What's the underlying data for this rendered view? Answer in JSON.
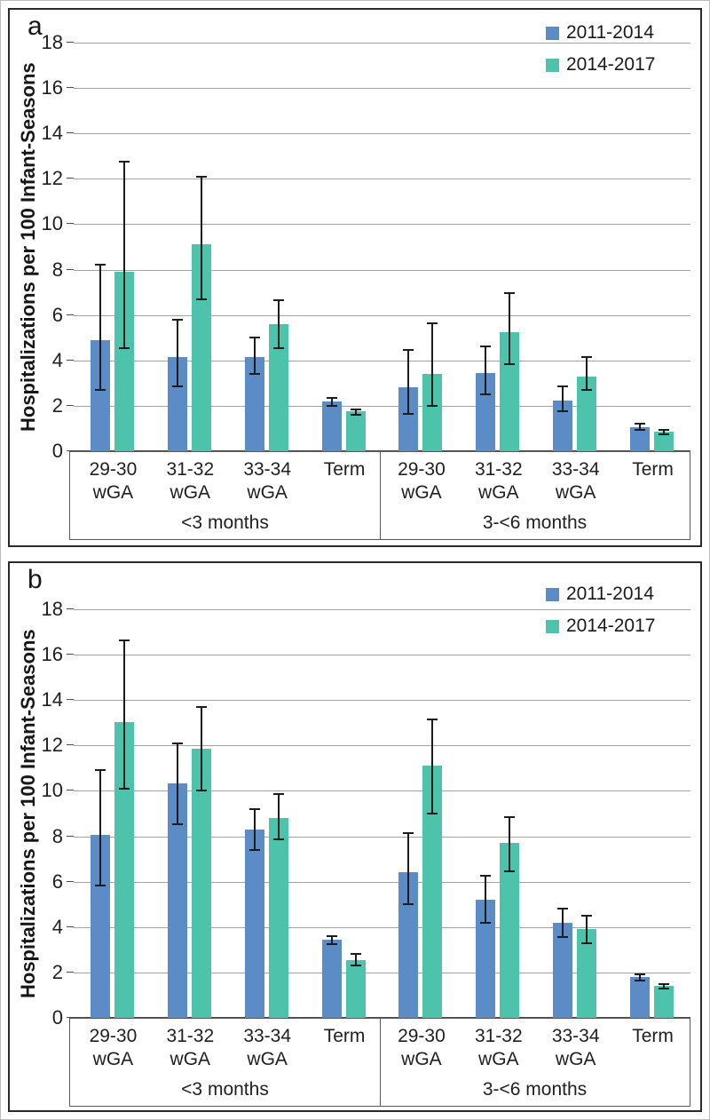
{
  "figure": {
    "description": "Two stacked grouped bar charts with error bars, panels a and b"
  },
  "chart_data": [
    {
      "type": "bar",
      "panel_label": "a",
      "ylabel": "Hospitalizations per 100 Infant-Seasons",
      "ylim": [
        0,
        18
      ],
      "yticks": [
        0,
        2,
        4,
        6,
        8,
        10,
        12,
        14,
        16,
        18
      ],
      "grid": true,
      "legend_position": "top-right",
      "legend_entries": [
        "2011-2014",
        "2014-2017"
      ],
      "groups": [
        {
          "label": "<3 months",
          "categories": [
            "29-30 wGA",
            "31-32 wGA",
            "33-34 wGA",
            "Term"
          ],
          "series": [
            {
              "name": "2011-2014",
              "color": "#5c8cc6",
              "values": [
                4.9,
                4.15,
                4.15,
                2.2
              ],
              "ci_low": [
                2.7,
                2.85,
                3.4,
                2.0
              ],
              "ci_high": [
                8.2,
                5.8,
                5.0,
                2.35
              ]
            },
            {
              "name": "2014-2017",
              "color": "#4ec3ac",
              "values": [
                7.9,
                9.1,
                5.6,
                1.75
              ],
              "ci_low": [
                4.55,
                6.7,
                4.55,
                1.6
              ],
              "ci_high": [
                12.75,
                12.1,
                6.65,
                1.85
              ]
            }
          ]
        },
        {
          "label": "3-<6 months",
          "categories": [
            "29-30 wGA",
            "31-32 wGA",
            "33-34 wGA",
            "Term"
          ],
          "series": [
            {
              "name": "2011-2014",
              "color": "#5c8cc6",
              "values": [
                2.8,
                3.45,
                2.25,
                1.05
              ],
              "ci_low": [
                1.65,
                2.5,
                1.75,
                0.95
              ],
              "ci_high": [
                4.45,
                4.6,
                2.85,
                1.2
              ]
            },
            {
              "name": "2014-2017",
              "color": "#4ec3ac",
              "values": [
                3.4,
                5.25,
                3.3,
                0.85
              ],
              "ci_low": [
                2.0,
                3.85,
                2.7,
                0.75
              ],
              "ci_high": [
                5.65,
                6.95,
                4.15,
                0.95
              ]
            }
          ]
        }
      ]
    },
    {
      "type": "bar",
      "panel_label": "b",
      "ylabel": "Hospitalizations per 100 Infant-Seasons",
      "ylim": [
        0,
        18
      ],
      "yticks": [
        0,
        2,
        4,
        6,
        8,
        10,
        12,
        14,
        16,
        18
      ],
      "grid": true,
      "legend_position": "top-right",
      "legend_entries": [
        "2011-2014",
        "2014-2017"
      ],
      "groups": [
        {
          "label": "<3 months",
          "categories": [
            "29-30 wGA",
            "31-32 wGA",
            "33-34 wGA",
            "Term"
          ],
          "series": [
            {
              "name": "2011-2014",
              "color": "#5c8cc6",
              "values": [
                8.05,
                10.35,
                8.3,
                3.45
              ],
              "ci_low": [
                5.85,
                8.55,
                7.4,
                3.25
              ],
              "ci_high": [
                10.9,
                12.1,
                9.2,
                3.6
              ]
            },
            {
              "name": "2014-2017",
              "color": "#4ec3ac",
              "values": [
                13.05,
                11.85,
                8.8,
                2.55
              ],
              "ci_low": [
                10.1,
                10.0,
                7.85,
                2.3
              ],
              "ci_high": [
                16.65,
                13.7,
                9.85,
                2.8
              ]
            }
          ]
        },
        {
          "label": "3-<6 months",
          "categories": [
            "29-30 wGA",
            "31-32 wGA",
            "33-34 wGA",
            "Term"
          ],
          "series": [
            {
              "name": "2011-2014",
              "color": "#5c8cc6",
              "values": [
                6.4,
                5.2,
                4.2,
                1.8
              ],
              "ci_low": [
                5.0,
                4.2,
                3.55,
                1.65
              ],
              "ci_high": [
                8.15,
                6.25,
                4.8,
                1.9
              ]
            },
            {
              "name": "2014-2017",
              "color": "#4ec3ac",
              "values": [
                11.1,
                7.7,
                3.9,
                1.4
              ],
              "ci_low": [
                9.0,
                6.45,
                3.3,
                1.3
              ],
              "ci_high": [
                13.15,
                8.85,
                4.5,
                1.5
              ]
            }
          ]
        }
      ]
    }
  ]
}
